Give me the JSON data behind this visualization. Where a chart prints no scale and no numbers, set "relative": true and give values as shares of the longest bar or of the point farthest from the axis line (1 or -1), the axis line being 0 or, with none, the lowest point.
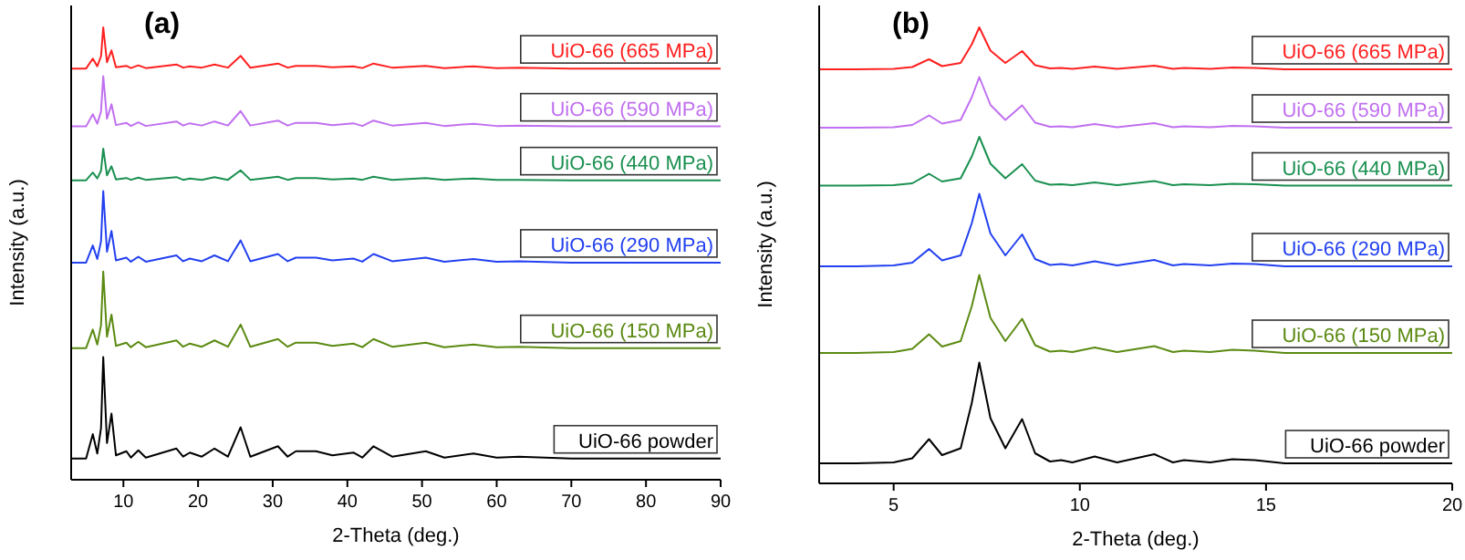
{
  "chart_data": [
    {
      "type": "line",
      "title": "(a)",
      "xlabel": "2-Theta (deg.)",
      "ylabel": "Intensity (a.u.)",
      "relative": true,
      "grid": false,
      "marker": "none",
      "line_style": "solid",
      "x": [
        3,
        5,
        5.9,
        6.5,
        7.0,
        7.3,
        7.8,
        8.4,
        9.0,
        10.4,
        11,
        12.0,
        13,
        17.1,
        18,
        18.9,
        20.5,
        22.2,
        24,
        25.7,
        27,
        30.7,
        32,
        33.1,
        35.8,
        38,
        40.8,
        42,
        43.5,
        46,
        50.5,
        53,
        56.9,
        60,
        63,
        70,
        90
      ],
      "xlim": [
        3,
        90
      ],
      "xticks": [
        10,
        20,
        30,
        40,
        50,
        60,
        70,
        80,
        90
      ],
      "series": [
        {
          "name": "UiO-66 powder",
          "color": "#000000",
          "values": [
            0.047,
            0.047,
            0.101,
            0.058,
            0.114,
            0.271,
            0.081,
            0.146,
            0.054,
            0.063,
            0.049,
            0.065,
            0.049,
            0.069,
            0.051,
            0.06,
            0.051,
            0.069,
            0.051,
            0.116,
            0.051,
            0.074,
            0.051,
            0.063,
            0.063,
            0.054,
            0.06,
            0.049,
            0.074,
            0.051,
            0.063,
            0.049,
            0.058,
            0.049,
            0.051,
            0.047,
            0.047
          ]
        },
        {
          "name": "UiO-66 (150 MPa)",
          "color": "#5b8a12",
          "values": [
            0.291,
            0.291,
            0.332,
            0.299,
            0.342,
            0.46,
            0.316,
            0.365,
            0.296,
            0.303,
            0.293,
            0.305,
            0.293,
            0.308,
            0.294,
            0.301,
            0.294,
            0.308,
            0.294,
            0.343,
            0.294,
            0.311,
            0.294,
            0.303,
            0.303,
            0.296,
            0.301,
            0.293,
            0.311,
            0.294,
            0.303,
            0.293,
            0.299,
            0.293,
            0.294,
            0.291,
            0.291
          ]
        },
        {
          "name": "UiO-66 (290 MPa)",
          "color": "#2340f0",
          "values": [
            0.48,
            0.48,
            0.518,
            0.488,
            0.527,
            0.638,
            0.504,
            0.55,
            0.485,
            0.491,
            0.482,
            0.493,
            0.482,
            0.496,
            0.483,
            0.489,
            0.483,
            0.496,
            0.483,
            0.529,
            0.483,
            0.499,
            0.483,
            0.491,
            0.491,
            0.485,
            0.489,
            0.482,
            0.499,
            0.483,
            0.491,
            0.482,
            0.488,
            0.482,
            0.483,
            0.48,
            0.48
          ]
        },
        {
          "name": "UiO-66 (440 MPa)",
          "color": "#1a9050",
          "values": [
            0.662,
            0.662,
            0.679,
            0.666,
            0.683,
            0.732,
            0.673,
            0.693,
            0.664,
            0.667,
            0.663,
            0.668,
            0.663,
            0.669,
            0.663,
            0.666,
            0.663,
            0.669,
            0.663,
            0.684,
            0.663,
            0.67,
            0.663,
            0.667,
            0.667,
            0.664,
            0.666,
            0.663,
            0.67,
            0.663,
            0.667,
            0.663,
            0.666,
            0.663,
            0.663,
            0.662,
            0.662
          ]
        },
        {
          "name": "UiO-66 (590 MPa)",
          "color": "#c070f0",
          "values": [
            0.781,
            0.781,
            0.808,
            0.787,
            0.814,
            0.892,
            0.798,
            0.83,
            0.784,
            0.789,
            0.782,
            0.79,
            0.782,
            0.792,
            0.783,
            0.788,
            0.783,
            0.792,
            0.783,
            0.815,
            0.783,
            0.794,
            0.783,
            0.789,
            0.789,
            0.784,
            0.788,
            0.782,
            0.794,
            0.783,
            0.789,
            0.782,
            0.787,
            0.782,
            0.783,
            0.781,
            0.781
          ]
        },
        {
          "name": "UiO-66 (665 MPa)",
          "color": "#ff2020",
          "values": [
            0.909,
            0.909,
            0.931,
            0.914,
            0.936,
            1.0,
            0.923,
            0.949,
            0.912,
            0.915,
            0.91,
            0.916,
            0.91,
            0.918,
            0.911,
            0.914,
            0.911,
            0.918,
            0.911,
            0.937,
            0.911,
            0.92,
            0.911,
            0.915,
            0.915,
            0.912,
            0.914,
            0.91,
            0.92,
            0.911,
            0.915,
            0.91,
            0.914,
            0.91,
            0.911,
            0.909,
            0.909
          ]
        }
      ]
    },
    {
      "type": "line",
      "title": "(b)",
      "xlabel": "2-Theta (deg.)",
      "ylabel": "Intensity (a.u.)",
      "relative": true,
      "grid": false,
      "marker": "none",
      "line_style": "solid",
      "x": [
        3,
        4,
        5,
        5.5,
        5.95,
        6.3,
        6.8,
        7.1,
        7.3,
        7.6,
        8.0,
        8.45,
        8.8,
        9.2,
        9.5,
        9.8,
        10.4,
        11,
        12.0,
        12.5,
        12.8,
        13.5,
        14.1,
        14.7,
        15.5,
        17,
        20
      ],
      "xlim": [
        3,
        20
      ],
      "xticks": [
        5,
        10,
        15,
        20
      ],
      "series": [
        {
          "name": "UiO-66 powder",
          "color": "#000000",
          "values": [
            0.044,
            0.044,
            0.046,
            0.055,
            0.097,
            0.062,
            0.077,
            0.177,
            0.265,
            0.143,
            0.077,
            0.141,
            0.066,
            0.048,
            0.051,
            0.046,
            0.059,
            0.046,
            0.064,
            0.046,
            0.051,
            0.046,
            0.053,
            0.051,
            0.044,
            0.044,
            0.044
          ]
        },
        {
          "name": "UiO-66 (150 MPa)",
          "color": "#5b8a12",
          "values": [
            0.286,
            0.286,
            0.288,
            0.295,
            0.327,
            0.3,
            0.312,
            0.389,
            0.457,
            0.363,
            0.312,
            0.361,
            0.303,
            0.289,
            0.291,
            0.288,
            0.298,
            0.288,
            0.301,
            0.288,
            0.291,
            0.288,
            0.293,
            0.291,
            0.286,
            0.286,
            0.286
          ]
        },
        {
          "name": "UiO-66 (290 MPa)",
          "color": "#2340f0",
          "values": [
            0.476,
            0.476,
            0.478,
            0.484,
            0.514,
            0.489,
            0.5,
            0.571,
            0.635,
            0.548,
            0.5,
            0.546,
            0.492,
            0.479,
            0.481,
            0.478,
            0.487,
            0.478,
            0.49,
            0.478,
            0.481,
            0.478,
            0.482,
            0.481,
            0.476,
            0.476,
            0.476
          ]
        },
        {
          "name": "UiO-66 (440 MPa)",
          "color": "#1a9050",
          "values": [
            0.653,
            0.653,
            0.654,
            0.658,
            0.679,
            0.662,
            0.669,
            0.717,
            0.76,
            0.701,
            0.669,
            0.7,
            0.664,
            0.655,
            0.656,
            0.654,
            0.66,
            0.654,
            0.663,
            0.654,
            0.656,
            0.654,
            0.657,
            0.656,
            0.653,
            0.653,
            0.653
          ]
        },
        {
          "name": "UiO-66 (590 MPa)",
          "color": "#c070f0",
          "values": [
            0.78,
            0.78,
            0.781,
            0.786,
            0.807,
            0.789,
            0.797,
            0.847,
            0.891,
            0.83,
            0.797,
            0.829,
            0.791,
            0.782,
            0.783,
            0.781,
            0.788,
            0.781,
            0.79,
            0.781,
            0.783,
            0.781,
            0.784,
            0.783,
            0.78,
            0.78,
            0.78
          ]
        },
        {
          "name": "UiO-66 (665 MPa)",
          "color": "#ff2020",
          "values": [
            0.908,
            0.908,
            0.909,
            0.913,
            0.93,
            0.915,
            0.922,
            0.963,
            1.0,
            0.949,
            0.922,
            0.948,
            0.917,
            0.91,
            0.911,
            0.909,
            0.914,
            0.909,
            0.916,
            0.909,
            0.911,
            0.909,
            0.912,
            0.911,
            0.908,
            0.908,
            0.908
          ]
        }
      ]
    }
  ]
}
